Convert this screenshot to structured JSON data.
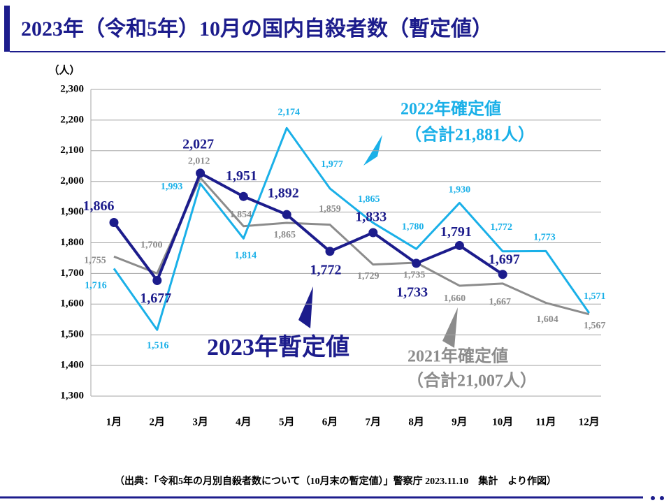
{
  "chart_data": {
    "type": "line",
    "title": "2023年（令和5年）10月の国内自殺者数（暫定値）",
    "y_unit": "（人）",
    "categories": [
      "1月",
      "2月",
      "3月",
      "4月",
      "5月",
      "6月",
      "7月",
      "8月",
      "9月",
      "10月",
      "11月",
      "12月"
    ],
    "ylim": [
      1300,
      2300
    ],
    "yticks": [
      {
        "value": 1300,
        "label": "1,300"
      },
      {
        "value": 1400,
        "label": "1,400"
      },
      {
        "value": 1500,
        "label": "1,500"
      },
      {
        "value": 1600,
        "label": "1,600"
      },
      {
        "value": 1700,
        "label": "1,700"
      },
      {
        "value": 1800,
        "label": "1,800"
      },
      {
        "value": 1900,
        "label": "1,900"
      },
      {
        "value": 2000,
        "label": "2,000"
      },
      {
        "value": 2100,
        "label": "2,100"
      },
      {
        "value": 2200,
        "label": "2,200"
      },
      {
        "value": 2300,
        "label": "2,300"
      }
    ],
    "grid": true,
    "series": [
      {
        "name": "2021年確定値",
        "total_label": "（合計21,007人）",
        "color": "#8c8c8c",
        "values": [
          1755,
          1700,
          2012,
          1854,
          1865,
          1859,
          1729,
          1735,
          1660,
          1667,
          1604,
          1567
        ],
        "value_labels": [
          "1,755",
          "1,700",
          "2,012",
          "1,854",
          "1,865",
          "1,859",
          "1,729",
          "1,735",
          "1,660",
          "1,667",
          "1,604",
          "1,567"
        ]
      },
      {
        "name": "2022年確定値",
        "total_label": "（合計21,881人）",
        "color": "#1ab0e8",
        "values": [
          1716,
          1516,
          1993,
          1814,
          2174,
          1977,
          1865,
          1780,
          1930,
          1772,
          1773,
          1571
        ],
        "value_labels": [
          "1,716",
          "1,516",
          "1,993",
          "1,814",
          "2,174",
          "1,977",
          "1,865",
          "1,780",
          "1,930",
          "1,772",
          "1,773",
          "1,571"
        ]
      },
      {
        "name": "2023年暫定値",
        "color": "#1c1c8c",
        "markers": true,
        "values": [
          1866,
          1677,
          2027,
          1951,
          1892,
          1772,
          1833,
          1733,
          1791,
          1697,
          null,
          null
        ],
        "value_labels": [
          "1,866",
          "1,677",
          "2,027",
          "1,951",
          "1,892",
          "1,772",
          "1,833",
          "1,733",
          "1,791",
          "1,697",
          null,
          null
        ]
      }
    ],
    "source": "（出典：「令和5年の月別自殺者数について（10月末の暫定値）」警察庁 2023.11.10　集計　より作図）"
  }
}
